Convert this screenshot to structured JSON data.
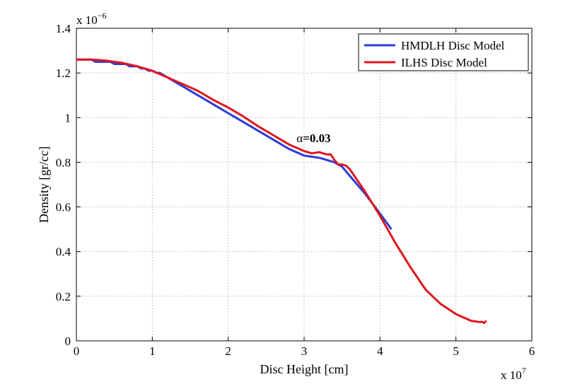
{
  "chart_data": {
    "type": "line",
    "title": "",
    "xlabel": "Disc Height [cm]",
    "ylabel": "Density [gr/cc]",
    "xlim": [
      0,
      6
    ],
    "ylim": [
      0,
      1.4
    ],
    "x_ticks": [
      "0",
      "1",
      "2",
      "3",
      "4",
      "5",
      "6"
    ],
    "y_ticks": [
      "0",
      "0.2",
      "0.4",
      "0.6",
      "0.8",
      "1",
      "1.2",
      "1.4"
    ],
    "x_multiplier": {
      "base": "x 10",
      "exp": "7"
    },
    "y_multiplier": {
      "base": "x 10",
      "exp": "−6"
    },
    "grid": true,
    "legend_position": "top-right",
    "annotation": {
      "symbol": "α",
      "value": "=0.03",
      "x": 2.9,
      "y": 0.89
    },
    "series": [
      {
        "name": "HMDLH Disc Model",
        "color": "#2b3bd6",
        "x": [
          0,
          0.2,
          0.25,
          0.45,
          0.5,
          0.65,
          0.7,
          0.8,
          0.85,
          0.9,
          0.95,
          1.0,
          1.05,
          1.1,
          1.2,
          1.3,
          1.4,
          1.5,
          1.6,
          1.7,
          1.8,
          1.9,
          2.0,
          2.1,
          2.2,
          2.4,
          2.6,
          2.8,
          3.0,
          3.2,
          3.4,
          3.5,
          3.6,
          3.8,
          4.0,
          4.15
        ],
        "y": [
          1.26,
          1.26,
          1.25,
          1.25,
          1.24,
          1.24,
          1.23,
          1.23,
          1.22,
          1.22,
          1.21,
          1.21,
          1.2,
          1.2,
          1.18,
          1.16,
          1.14,
          1.12,
          1.1,
          1.08,
          1.06,
          1.04,
          1.02,
          1.0,
          0.98,
          0.94,
          0.9,
          0.86,
          0.83,
          0.82,
          0.8,
          0.78,
          0.74,
          0.66,
          0.57,
          0.5
        ]
      },
      {
        "name": "ILHS Disc Model",
        "color": "#e0161d",
        "x": [
          0,
          0.2,
          0.4,
          0.6,
          0.8,
          1.0,
          1.2,
          1.4,
          1.6,
          1.8,
          2.0,
          2.2,
          2.4,
          2.6,
          2.8,
          3.0,
          3.1,
          3.2,
          3.25,
          3.3,
          3.35,
          3.4,
          3.45,
          3.5,
          3.55,
          3.6,
          3.7,
          3.8,
          4.0,
          4.2,
          4.4,
          4.6,
          4.8,
          5.0,
          5.2,
          5.3,
          5.35,
          5.37,
          5.4
        ],
        "y": [
          1.26,
          1.26,
          1.255,
          1.245,
          1.23,
          1.21,
          1.18,
          1.15,
          1.12,
          1.08,
          1.045,
          1.005,
          0.96,
          0.92,
          0.88,
          0.85,
          0.84,
          0.845,
          0.84,
          0.835,
          0.835,
          0.81,
          0.79,
          0.79,
          0.785,
          0.77,
          0.72,
          0.67,
          0.56,
          0.44,
          0.33,
          0.23,
          0.165,
          0.12,
          0.09,
          0.085,
          0.085,
          0.08,
          0.09
        ]
      }
    ]
  }
}
